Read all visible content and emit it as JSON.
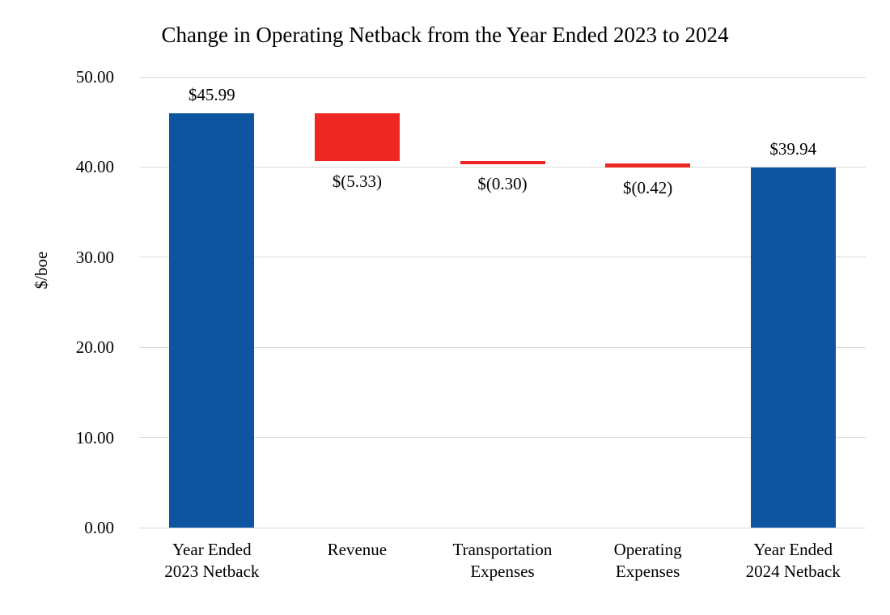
{
  "chart_data": {
    "type": "bar",
    "subtype": "waterfall",
    "title": "Change in Operating Netback from the Year Ended 2023 to 2024",
    "xlabel": "",
    "ylabel": "$/boe",
    "ylim": [
      0,
      50
    ],
    "ytick_step": 10,
    "ytick_labels": [
      "0.00",
      "10.00",
      "20.00",
      "30.00",
      "40.00",
      "50.00"
    ],
    "grid": true,
    "legend": false,
    "colors": {
      "total_bar": "#0d55a1",
      "decrease_bar": "#ee2724",
      "gridline": "#d9d9d9",
      "text": "#000000",
      "background": "#ffffff"
    },
    "bars": [
      {
        "category": "Year Ended 2023 Netback",
        "category_lines": [
          "Year Ended",
          "2023 Netback"
        ],
        "role": "total",
        "value": 45.99,
        "start": 0,
        "end": 45.99,
        "data_label": "$45.99",
        "label_position": "above"
      },
      {
        "category": "Revenue",
        "category_lines": [
          "Revenue"
        ],
        "role": "decrease",
        "value": -5.33,
        "start": 45.99,
        "end": 40.66,
        "data_label": "$(5.33)",
        "label_position": "below"
      },
      {
        "category": "Transportation Expenses",
        "category_lines": [
          "Transportation",
          "Expenses"
        ],
        "role": "decrease",
        "value": -0.3,
        "start": 40.66,
        "end": 40.36,
        "data_label": "$(0.30)",
        "label_position": "below"
      },
      {
        "category": "Operating Expenses",
        "category_lines": [
          "Operating",
          "Expenses"
        ],
        "role": "decrease",
        "value": -0.42,
        "start": 40.36,
        "end": 39.94,
        "data_label": "$(0.42)",
        "label_position": "below"
      },
      {
        "category": "Year Ended 2024 Netback",
        "category_lines": [
          "Year Ended",
          "2024 Netback"
        ],
        "role": "total",
        "value": 39.94,
        "start": 0,
        "end": 39.94,
        "data_label": "$39.94",
        "label_position": "above"
      }
    ]
  }
}
